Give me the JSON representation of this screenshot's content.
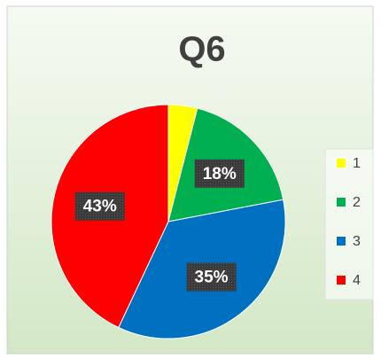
{
  "chart_data": {
    "type": "pie",
    "title": "Q6",
    "categories": [
      "1",
      "2",
      "3",
      "4"
    ],
    "values": [
      4,
      18,
      35,
      43
    ],
    "value_labels": [
      null,
      "18%",
      "35%",
      "43%"
    ],
    "colors": [
      "#ffff00",
      "#00b050",
      "#0070c0",
      "#ff0000"
    ],
    "legend": "right"
  }
}
